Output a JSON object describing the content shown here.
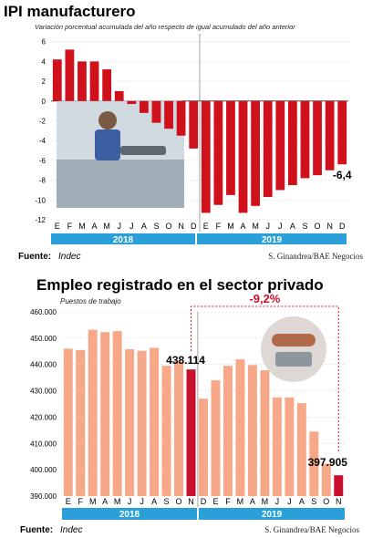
{
  "chart_data": [
    {
      "type": "bar",
      "title": "IPI manufacturero",
      "subtitle": "Variación porcentual acumulada del año respecto de igual acumulado del año anterior",
      "categories": [
        "E",
        "F",
        "M",
        "A",
        "M",
        "J",
        "J",
        "A",
        "S",
        "O",
        "N",
        "D",
        "E",
        "F",
        "M",
        "A",
        "M",
        "J",
        "J",
        "A",
        "S",
        "O",
        "N",
        "D"
      ],
      "years": [
        "2018",
        "2019"
      ],
      "values": [
        4.2,
        5.2,
        4.0,
        4.0,
        3.2,
        1.0,
        -0.3,
        -1.2,
        -2.2,
        -2.8,
        -3.5,
        -4.8,
        -11.3,
        -10.5,
        -9.5,
        -11.3,
        -10.6,
        -9.7,
        -9.0,
        -8.5,
        -7.8,
        -7.5,
        -7.0,
        -6.4
      ],
      "highlight_label": "-6,4",
      "yticks": [
        "6",
        "4",
        "2",
        "0",
        "-2",
        "-4",
        "-6",
        "-8",
        "-10",
        "-12"
      ],
      "ylim": [
        -12,
        6.8
      ],
      "bar_color": "#d0111c",
      "source_label": "Fuente:",
      "source": "Indec",
      "credit": "S. Ginandrea/BAE Negocios"
    },
    {
      "type": "bar",
      "title": "Empleo registrado en el sector privado",
      "subtitle": "Puestos de trabajo",
      "categories": [
        "E",
        "F",
        "M",
        "A",
        "M",
        "J",
        "J",
        "A",
        "S",
        "O",
        "N",
        "D",
        "E",
        "F",
        "M",
        "A",
        "M",
        "J",
        "J",
        "A",
        "S",
        "O",
        "N"
      ],
      "years": [
        "2018",
        "2019"
      ],
      "values": [
        446.0,
        445.5,
        453.2,
        452.3,
        452.7,
        445.8,
        445.2,
        446.3,
        439.5,
        441.2,
        438.114,
        427.0,
        434.0,
        439.5,
        442.0,
        439.8,
        437.8,
        427.5,
        427.5,
        425.3,
        414.5,
        402.3,
        397.905
      ],
      "highlight_index": 10,
      "highlight_label": "438.114",
      "last_label": "397.905",
      "change_label": "-9,2%",
      "yticks": [
        "460.000",
        "450.000",
        "440.000",
        "430.000",
        "420.000",
        "410.000",
        "400.000",
        "390.000"
      ],
      "ylim": [
        390,
        460
      ],
      "bar_color": "#f7a888",
      "highlight_color": "#c8102e",
      "source_label": "Fuente:",
      "source": "Indec",
      "credit": "S. Ginandrea/BAE Negocios"
    }
  ],
  "colors": {
    "year_bar": "#2a9fd8",
    "accent_red": "#c8102e"
  }
}
